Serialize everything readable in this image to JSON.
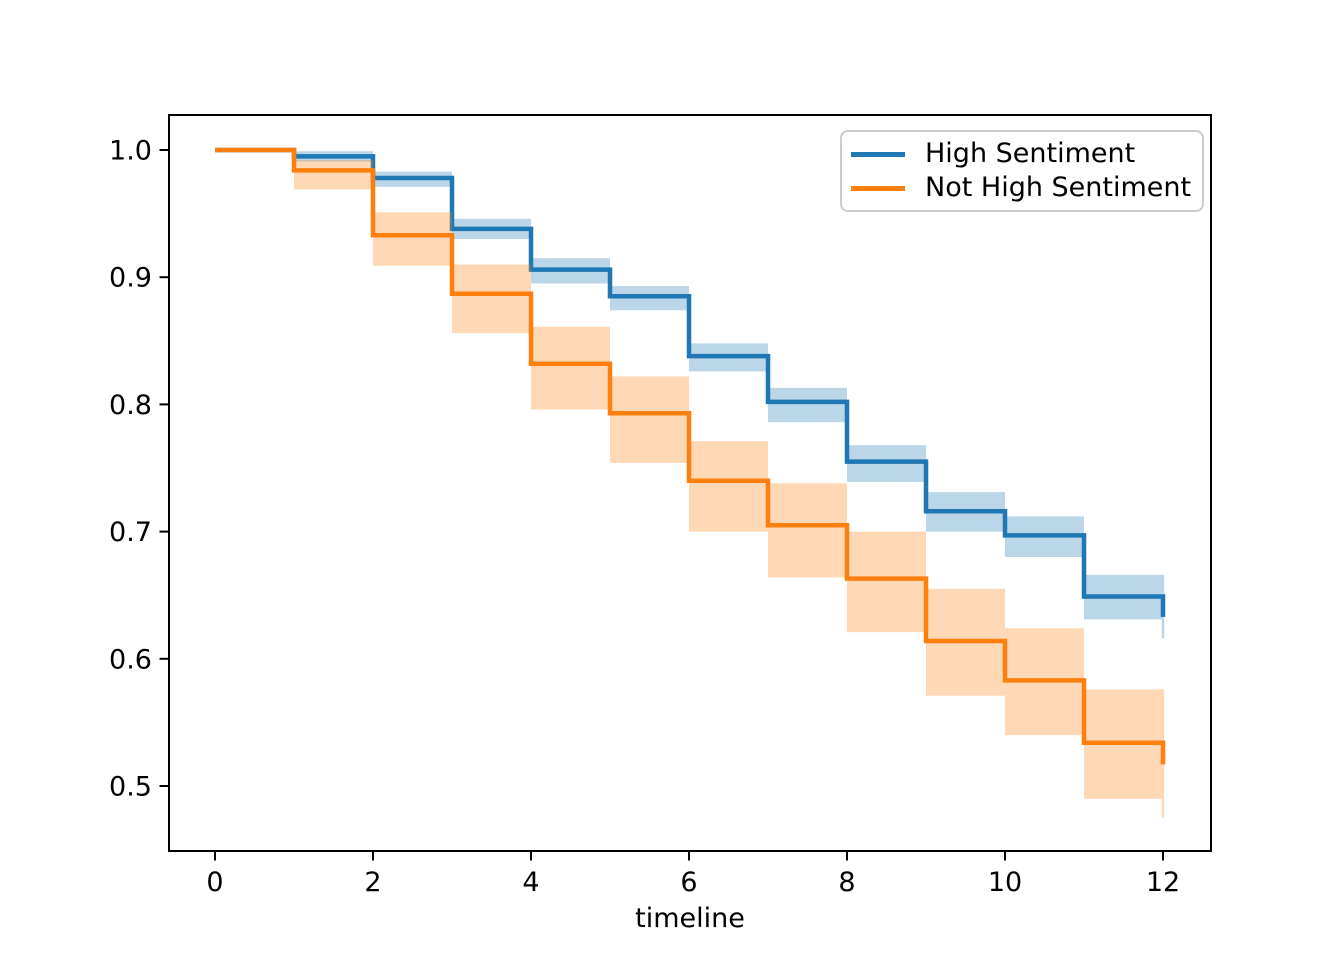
{
  "figure": {
    "background_color": "#ffffff",
    "axes_frame_color": "#000000"
  },
  "chart_data": {
    "type": "line",
    "subtype": "kaplan-meier-step-survival",
    "title": "",
    "xlabel": "timeline",
    "ylabel": "",
    "grid": false,
    "legend_position": "upper right",
    "xlim": [
      -0.58,
      12.61
    ],
    "ylim": [
      0.449,
      1.028
    ],
    "x_ticks": {
      "values": [
        0,
        2,
        4,
        6,
        8,
        10,
        12
      ],
      "labels": [
        "0",
        "2",
        "4",
        "6",
        "8",
        "10",
        "12"
      ]
    },
    "y_ticks": {
      "values": [
        1.0,
        0.9,
        0.8,
        0.7,
        0.6,
        0.5
      ],
      "labels": [
        "1.0",
        "0.9",
        "0.8",
        "0.7",
        "0.6",
        "0.5"
      ]
    },
    "x": [
      0,
      1,
      2,
      3,
      4,
      5,
      6,
      7,
      8,
      9,
      10,
      11,
      12
    ],
    "series": [
      {
        "name": "High Sentiment",
        "color": "#1f77b4",
        "ci_opacity": 0.3,
        "survival": [
          1.0,
          0.995,
          0.978,
          0.938,
          0.906,
          0.885,
          0.838,
          0.802,
          0.755,
          0.716,
          0.697,
          0.649,
          0.633
        ],
        "ci_upper": [
          1.0,
          0.999,
          0.983,
          0.946,
          0.915,
          0.893,
          0.848,
          0.813,
          0.768,
          0.731,
          0.712,
          0.666,
          0.666
        ],
        "ci_lower": [
          1.0,
          0.991,
          0.971,
          0.93,
          0.895,
          0.874,
          0.826,
          0.786,
          0.739,
          0.7,
          0.68,
          0.631,
          0.616
        ]
      },
      {
        "name": "Not High Sentiment",
        "color": "#ff7f0e",
        "ci_opacity": 0.3,
        "survival": [
          1.0,
          0.984,
          0.933,
          0.887,
          0.832,
          0.793,
          0.74,
          0.705,
          0.663,
          0.614,
          0.583,
          0.534,
          0.517
        ],
        "ci_upper": [
          1.0,
          0.992,
          0.951,
          0.91,
          0.861,
          0.822,
          0.771,
          0.738,
          0.7,
          0.655,
          0.624,
          0.576,
          0.576
        ],
        "ci_lower": [
          1.0,
          0.969,
          0.909,
          0.856,
          0.796,
          0.754,
          0.7,
          0.664,
          0.621,
          0.571,
          0.54,
          0.49,
          0.475
        ]
      }
    ]
  }
}
